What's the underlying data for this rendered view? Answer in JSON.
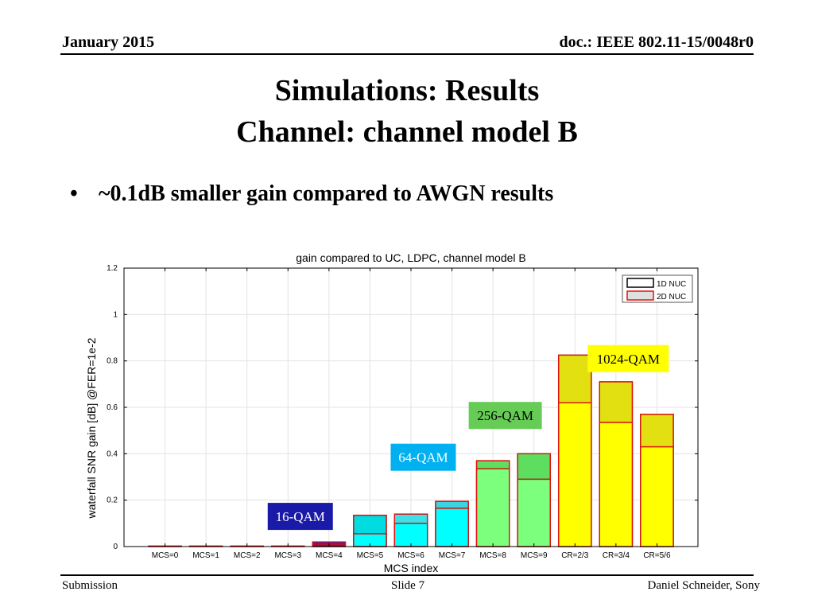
{
  "header": {
    "date": "January 2015",
    "doc": "doc.: IEEE 802.11-15/0048r0"
  },
  "slide": {
    "title_line1": "Simulations: Results",
    "title_line2": "Channel: channel model B",
    "bullet": "~0.1dB smaller gain compared to AWGN results"
  },
  "footer": {
    "left": "Submission",
    "center": "Slide 7",
    "right": "Daniel Schneider, Sony"
  },
  "chart_data": {
    "type": "bar",
    "title": "gain compared to UC, LDPC, channel model B",
    "xlabel": "MCS index",
    "ylabel": "waterfall SNR gain [dB] @FER=1e-2",
    "ylim": [
      0,
      1.2
    ],
    "yticks": [
      0,
      0.2,
      0.4,
      0.6,
      0.8,
      1,
      1.2
    ],
    "ytick_labels": [
      "0",
      "0.2",
      "0.4",
      "0.6",
      "0.8",
      "1",
      "1.2"
    ],
    "grid": true,
    "legend_position": "top-right",
    "categories": [
      "MCS=0",
      "MCS=1",
      "MCS=2",
      "MCS=3",
      "MCS=4",
      "MCS=5",
      "MCS=6",
      "MCS=7",
      "MCS=8",
      "MCS=9",
      "CR=2/3",
      "CR=3/4",
      "CR=5/6"
    ],
    "series": [
      {
        "name": "1D NUC",
        "values": [
          0,
          0,
          0,
          0,
          0.01,
          0.055,
          0.1,
          0.165,
          0.335,
          0.29,
          0.62,
          0.535,
          0.43
        ]
      },
      {
        "name": "2D NUC",
        "values": [
          0.002,
          0.002,
          0.002,
          0.002,
          0.02,
          0.135,
          0.14,
          0.195,
          0.37,
          0.4,
          0.825,
          0.71,
          0.57
        ]
      }
    ],
    "bar_colors": [
      "#ffffff",
      "#ffffff",
      "#ffffff",
      "#ffffff",
      "#2b22d6",
      "#00ffff",
      "#00ffff",
      "#00ffff",
      "#7cff7c",
      "#7cff7c",
      "#ffff00",
      "#ffff00",
      "#ffff00"
    ],
    "bar_top_colors": [
      "#ffffff",
      "#ffffff",
      "#ffffff",
      "#ffffff",
      "#2b22d6",
      "#00dce0",
      "#3ce0e6",
      "#3cd4e0",
      "#5ee05e",
      "#5ede5e",
      "#e2e010",
      "#e2e010",
      "#e2e010"
    ],
    "legend_fill_2d": "#e0e0e0",
    "annotations": [
      {
        "text": "16-QAM",
        "bg": "#1a1aa8",
        "fg": "#ffffff",
        "x": "MCS=3",
        "y": 0.13
      },
      {
        "text": "64-QAM",
        "bg": "#00b0f0",
        "fg": "#ffffff",
        "x": "MCS=6",
        "y": 0.385
      },
      {
        "text": "256-QAM",
        "bg": "#66cc55",
        "fg": "#000000",
        "x": "MCS=8",
        "y": 0.565
      },
      {
        "text": "1024-QAM",
        "bg": "#ffff00",
        "fg": "#000000",
        "x": "CR=3/4",
        "y": 0.81
      }
    ]
  }
}
